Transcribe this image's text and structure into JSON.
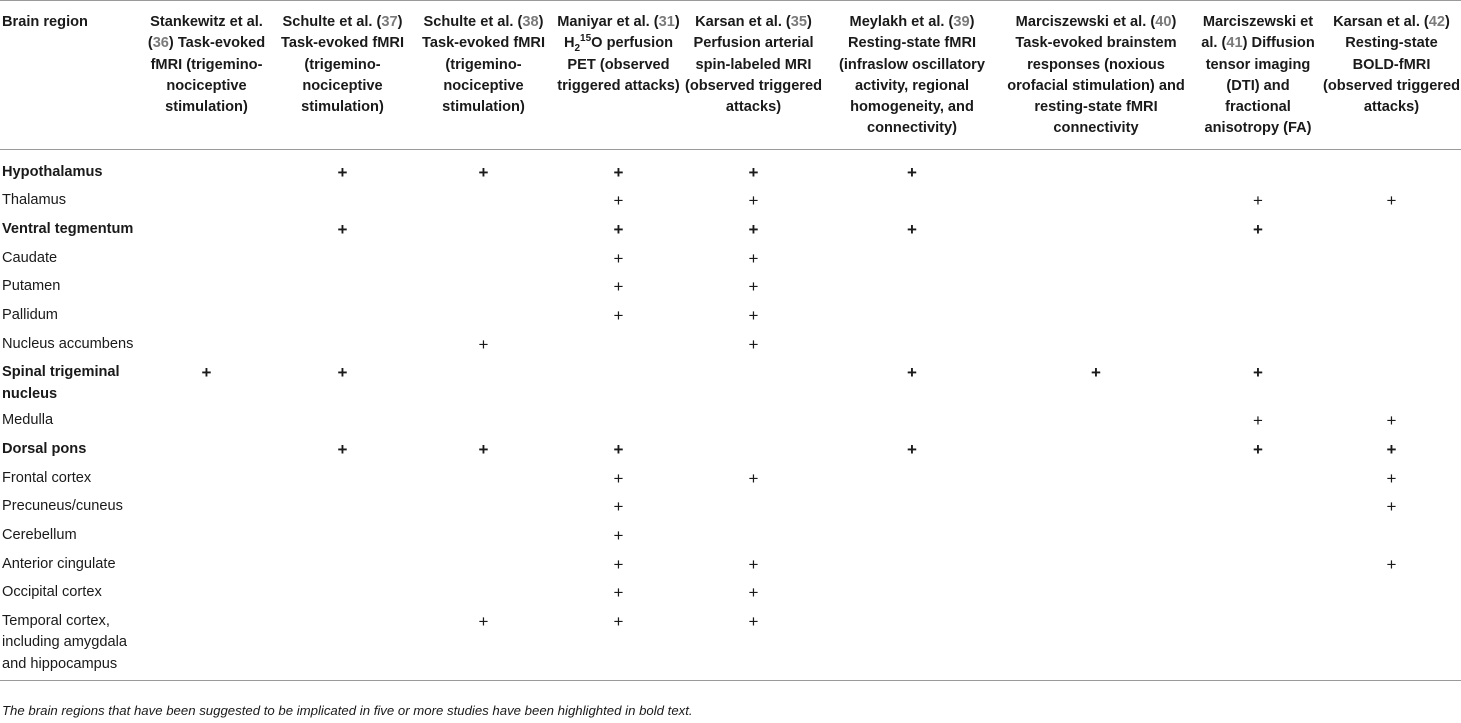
{
  "table": {
    "columns": [
      {
        "pre": "Brain region",
        "ref": "",
        "post": ""
      },
      {
        "pre": "Stankewitz et al. (",
        "ref": "36",
        "post": ") Task-evoked fMRI (trigemino-nociceptive stimulation)"
      },
      {
        "pre": "Schulte et al. (",
        "ref": "37",
        "post": ") Task-evoked fMRI (trigemino-nociceptive stimulation)"
      },
      {
        "pre": "Schulte et al. (",
        "ref": "38",
        "post": ") Task-evoked fMRI (trigemino-nociceptive stimulation)"
      },
      {
        "pre": "Maniyar et al. (",
        "ref": "31",
        "post": ")",
        "tracer": {
          "base": "H",
          "sub": "2",
          "sup": "15",
          "tail": "O perfusion PET (observed triggered attacks)"
        }
      },
      {
        "pre": "Karsan et al. (",
        "ref": "35",
        "post": ") Perfusion arterial spin-labeled MRI (observed triggered attacks)"
      },
      {
        "pre": "Meylakh et al. (",
        "ref": "39",
        "post": ") Resting-state fMRI (infraslow oscillatory activity, regional homogeneity, and connectivity)"
      },
      {
        "pre": "Marciszewski et al. (",
        "ref": "40",
        "post": ") Task-evoked brainstem responses (noxious orofacial stimulation) and resting-state fMRI connectivity"
      },
      {
        "pre": "Marciszewski et al. (",
        "ref": "41",
        "post": ") Diffusion tensor imaging (DTI) and fractional anisotropy (FA)"
      },
      {
        "pre": "Karsan et al. (",
        "ref": "42",
        "post": ") Resting-state BOLD-fMRI (observed triggered attacks)"
      }
    ],
    "mark_symbol": "+",
    "rows": [
      {
        "region": "Hypothalamus",
        "bold": true,
        "marks": [
          0,
          1,
          1,
          1,
          1,
          1,
          0,
          0,
          0
        ]
      },
      {
        "region": "Thalamus",
        "bold": false,
        "marks": [
          0,
          0,
          0,
          1,
          1,
          0,
          0,
          1,
          1
        ]
      },
      {
        "region": "Ventral tegmentum",
        "bold": true,
        "marks": [
          0,
          1,
          0,
          1,
          1,
          1,
          0,
          1,
          0
        ]
      },
      {
        "region": "Caudate",
        "bold": false,
        "marks": [
          0,
          0,
          0,
          1,
          1,
          0,
          0,
          0,
          0
        ]
      },
      {
        "region": "Putamen",
        "bold": false,
        "marks": [
          0,
          0,
          0,
          1,
          1,
          0,
          0,
          0,
          0
        ]
      },
      {
        "region": "Pallidum",
        "bold": false,
        "marks": [
          0,
          0,
          0,
          1,
          1,
          0,
          0,
          0,
          0
        ]
      },
      {
        "region": "Nucleus accumbens",
        "bold": false,
        "marks": [
          0,
          0,
          1,
          0,
          1,
          0,
          0,
          0,
          0
        ]
      },
      {
        "region": "Spinal trigeminal nucleus",
        "bold": true,
        "marks": [
          1,
          1,
          0,
          0,
          0,
          1,
          1,
          1,
          0
        ]
      },
      {
        "region": "Medulla",
        "bold": false,
        "marks": [
          0,
          0,
          0,
          0,
          0,
          0,
          0,
          1,
          1
        ]
      },
      {
        "region": "Dorsal pons",
        "bold": true,
        "marks": [
          0,
          1,
          1,
          1,
          0,
          1,
          0,
          1,
          1
        ]
      },
      {
        "region": "Frontal cortex",
        "bold": false,
        "marks": [
          0,
          0,
          0,
          1,
          1,
          0,
          0,
          0,
          1
        ]
      },
      {
        "region": "Precuneus/cuneus",
        "bold": false,
        "marks": [
          0,
          0,
          0,
          1,
          0,
          0,
          0,
          0,
          1
        ]
      },
      {
        "region": "Cerebellum",
        "bold": false,
        "marks": [
          0,
          0,
          0,
          1,
          0,
          0,
          0,
          0,
          0
        ]
      },
      {
        "region": "Anterior cingulate",
        "bold": false,
        "marks": [
          0,
          0,
          0,
          1,
          1,
          0,
          0,
          0,
          1
        ]
      },
      {
        "region": "Occipital cortex",
        "bold": false,
        "marks": [
          0,
          0,
          0,
          1,
          1,
          0,
          0,
          0,
          0
        ]
      },
      {
        "region": "Temporal cortex, including amygdala and hippocampus",
        "bold": false,
        "marks": [
          0,
          0,
          1,
          1,
          1,
          0,
          0,
          0,
          0
        ]
      }
    ]
  },
  "footnote": "The brain regions that have been suggested to be implicated in five or more studies have been highlighted in bold text."
}
